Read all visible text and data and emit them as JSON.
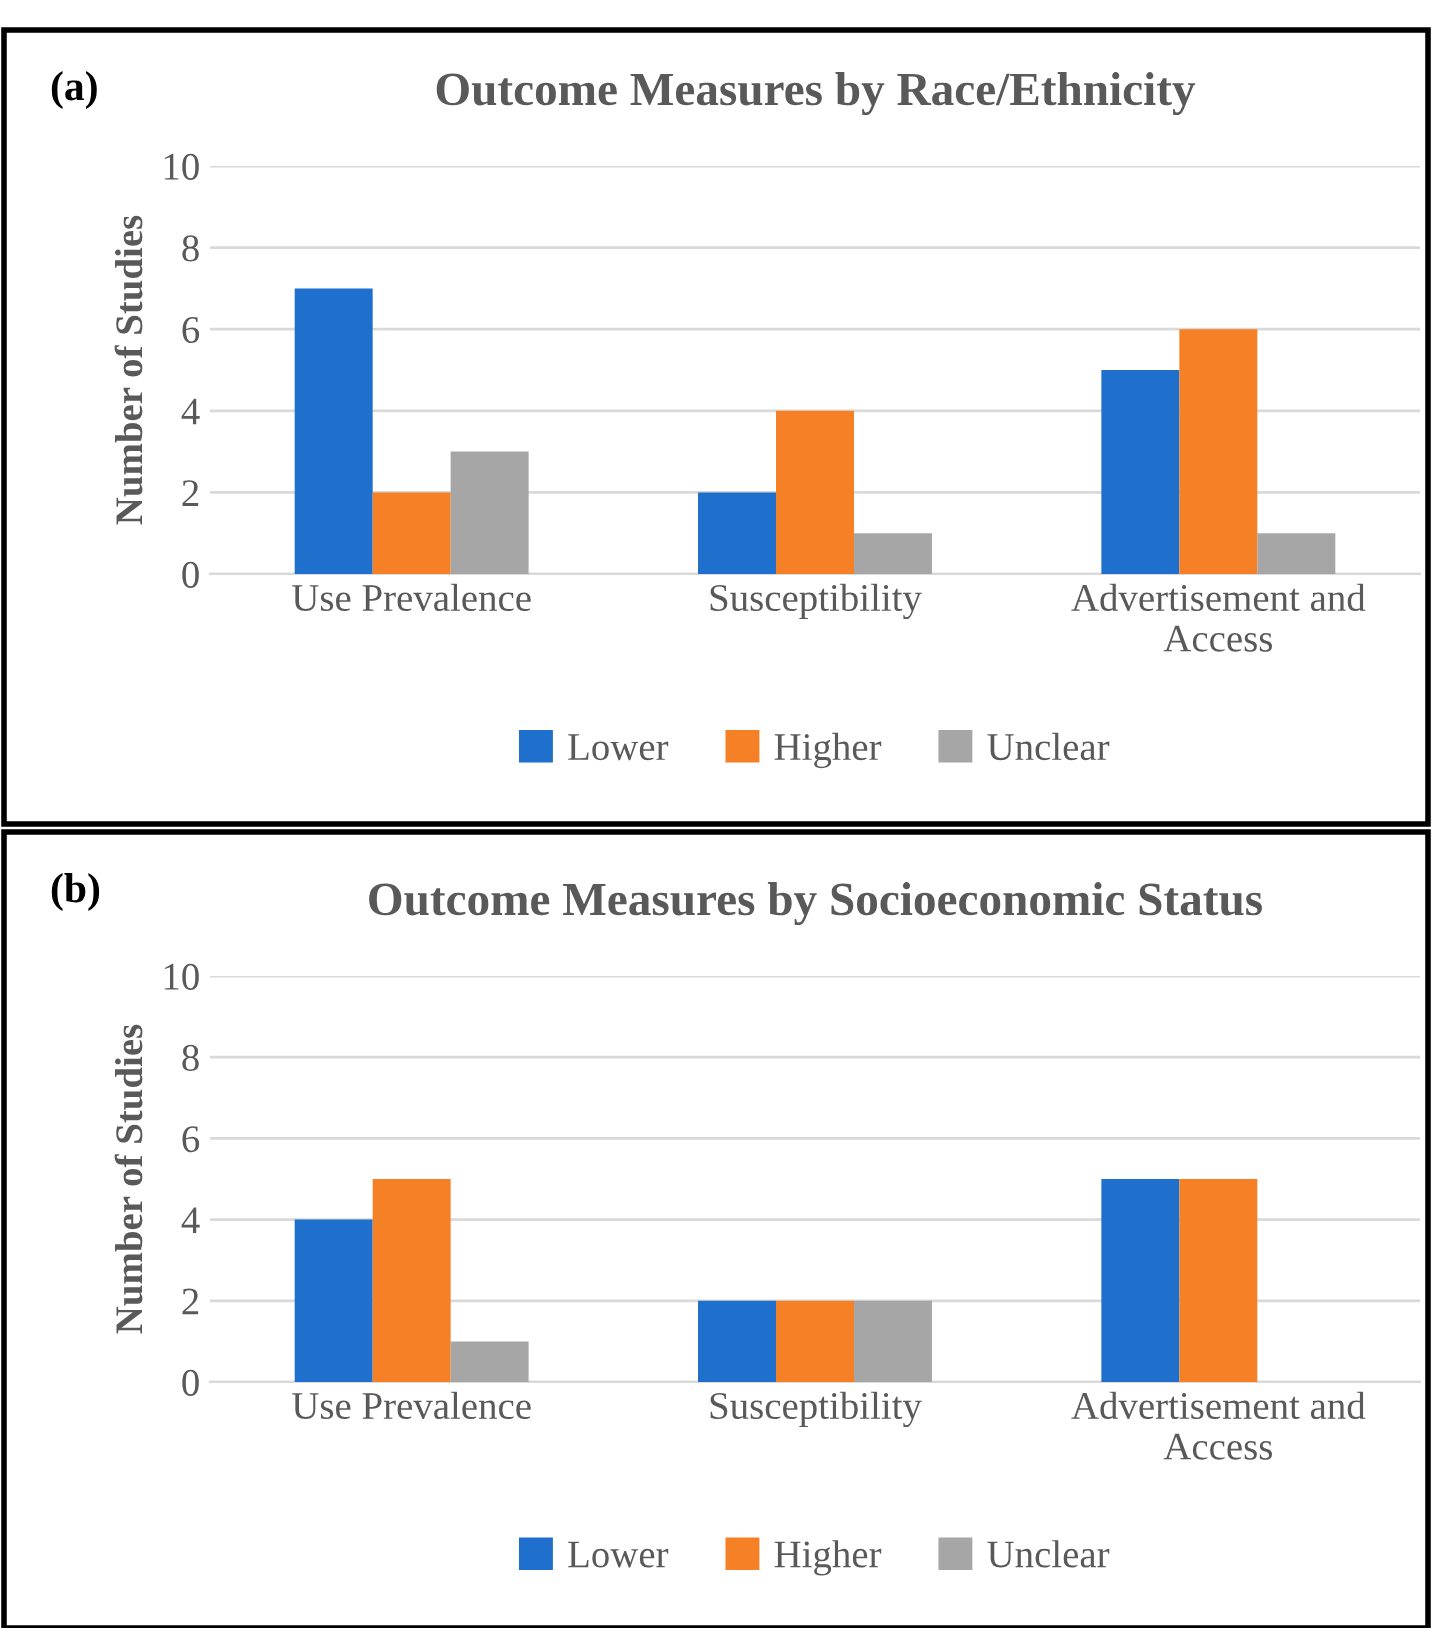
{
  "chart_data": [
    {
      "type": "bar",
      "title": "Outcome Measures by Race/Ethnicity",
      "ylabel": "Number of Studies",
      "annotations": [
        "(a)"
      ],
      "categories": [
        "Use Prevalence",
        "Susceptibility",
        "Advertisement and\nAccess"
      ],
      "series": [
        {
          "name": "Lower",
          "color": "#1f6fcc",
          "values": [
            7,
            2,
            5
          ]
        },
        {
          "name": "Higher",
          "color": "#f58025",
          "values": [
            2,
            4,
            6
          ]
        },
        {
          "name": "Unclear",
          "color": "#a6a6a6",
          "values": [
            3,
            1,
            1
          ]
        }
      ],
      "ylim": [
        0,
        10
      ],
      "yticks": [
        0,
        2,
        4,
        6,
        8,
        10
      ],
      "grid": "y",
      "legend": "bottom"
    },
    {
      "type": "bar",
      "title": "Outcome Measures by Socioeconomic Status",
      "ylabel": "Number of Studies",
      "annotations": [
        "(b)"
      ],
      "categories": [
        "Use Prevalence",
        "Susceptibility",
        "Advertisement and\nAccess"
      ],
      "series": [
        {
          "name": "Lower",
          "color": "#1f6fcc",
          "values": [
            4,
            2,
            5
          ]
        },
        {
          "name": "Higher",
          "color": "#f58025",
          "values": [
            5,
            2,
            5
          ]
        },
        {
          "name": "Unclear",
          "color": "#a6a6a6",
          "values": [
            1,
            2,
            0
          ]
        }
      ],
      "ylim": [
        0,
        10
      ],
      "yticks": [
        0,
        2,
        4,
        6,
        8,
        10
      ],
      "grid": "y",
      "legend": "bottom"
    }
  ]
}
